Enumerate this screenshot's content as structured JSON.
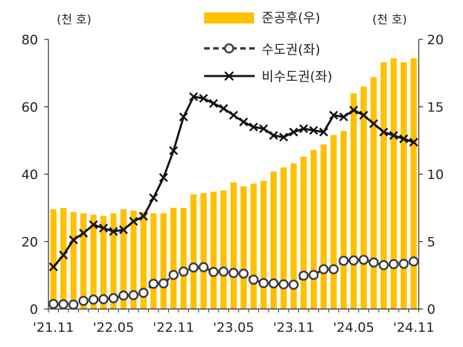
{
  "chart_data": {
    "type": "bar+line",
    "left_unit": "(천 호)",
    "right_unit": "(천 호)",
    "left_ylim": [
      0,
      80
    ],
    "right_ylim": [
      0,
      20
    ],
    "left_ticks": [
      "0",
      "20",
      "40",
      "60",
      "80"
    ],
    "right_ticks": [
      "0",
      "5",
      "10",
      "15",
      "20"
    ],
    "x_tick_labels": [
      "'21.11",
      "'22.05",
      "'22.11",
      "'23.05",
      "'23.11",
      "'24.05",
      "'24.11"
    ],
    "x": [
      "'21.11",
      "'21.12",
      "'22.01",
      "'22.02",
      "'22.03",
      "'22.04",
      "'22.05",
      "'22.06",
      "'22.07",
      "'22.08",
      "'22.09",
      "'22.10",
      "'22.11",
      "'22.12",
      "'23.01",
      "'23.02",
      "'23.03",
      "'23.04",
      "'23.05",
      "'23.06",
      "'23.07",
      "'23.08",
      "'23.09",
      "'23.10",
      "'23.11",
      "'23.12",
      "'24.01",
      "'24.02",
      "'24.03",
      "'24.04",
      "'24.05",
      "'24.06",
      "'24.07",
      "'24.08",
      "'24.09",
      "'24.10",
      "'24.11"
    ],
    "series": [
      {
        "name": "준공후(우)",
        "kind": "bar",
        "axis": "right",
        "color": "#FFC000",
        "values": [
          7.4,
          7.5,
          7.2,
          7.1,
          7.0,
          6.9,
          7.1,
          7.4,
          7.3,
          7.2,
          7.1,
          7.1,
          7.5,
          7.5,
          8.5,
          8.6,
          8.7,
          8.8,
          9.4,
          9.1,
          9.3,
          9.5,
          10.2,
          10.5,
          10.8,
          11.3,
          11.8,
          12.2,
          12.9,
          13.2,
          16.0,
          16.5,
          17.2,
          18.3,
          18.6,
          18.3,
          18.6
        ]
      },
      {
        "name": "수도권(좌)",
        "kind": "line",
        "axis": "left",
        "marker": "circle",
        "dashed": true,
        "color": "#3A3A3A",
        "values": [
          1.5,
          1.4,
          1.3,
          2.4,
          2.8,
          2.9,
          3.2,
          4.0,
          4.1,
          4.8,
          7.5,
          7.6,
          10.1,
          11.1,
          12.3,
          12.4,
          11.0,
          11.1,
          10.7,
          10.5,
          8.7,
          7.7,
          7.6,
          7.3,
          7.2,
          9.9,
          10.1,
          11.8,
          11.8,
          14.3,
          14.4,
          14.6,
          13.8,
          13.0,
          13.3,
          13.4,
          14.1
        ]
      },
      {
        "name": "비수도권(좌)",
        "kind": "line",
        "axis": "left",
        "marker": "x",
        "dashed": false,
        "color": "#111111",
        "values": [
          12.5,
          16.0,
          20.5,
          22.5,
          25.0,
          24.0,
          23.0,
          23.5,
          26.0,
          27.5,
          33.0,
          39.0,
          47.0,
          57.0,
          63.0,
          62.5,
          61.0,
          59.5,
          57.5,
          55.5,
          54.0,
          53.5,
          51.5,
          51.0,
          52.5,
          53.5,
          53.0,
          52.5,
          57.5,
          57.0,
          59.0,
          57.5,
          55.0,
          52.5,
          51.5,
          50.5,
          49.5
        ]
      }
    ],
    "legend_position": "top-right",
    "grid": false
  }
}
